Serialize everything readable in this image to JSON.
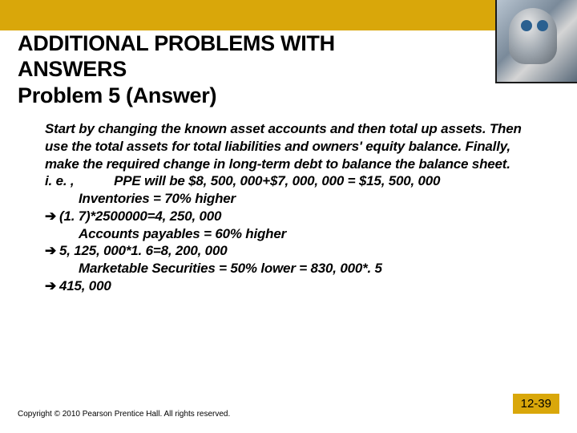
{
  "accent_color": "#d9a70a",
  "title": {
    "line1": "ADDITIONAL PROBLEMS WITH",
    "line2": "ANSWERS",
    "line3": "Problem 5 (Answer)"
  },
  "body": {
    "p1": "Start by changing the known asset accounts and then total up assets. Then use the total assets for total liabilities and owners' equity balance. Finally, make the required change in long-term debt to balance the balance sheet.",
    "p2": "i. e. ,           PPE will be $8, 500, 000+$7, 000, 000 = $15, 500, 000",
    "p3_indent": "Inventories = 70% higher",
    "p3_arrow": "(1. 7)*2500000=4, 250, 000",
    "p4_indent": "Accounts payables = 60% higher",
    "p4_arrow": "5, 125, 000*1. 6=8, 200, 000",
    "p5_indent": "Marketable Securities = 50% lower = 830, 000*. 5",
    "p5_arrow": "415, 000"
  },
  "arrow_glyph": "➔",
  "footer": "Copyright © 2010 Pearson Prentice Hall. All rights reserved.",
  "page_number": "12-39"
}
